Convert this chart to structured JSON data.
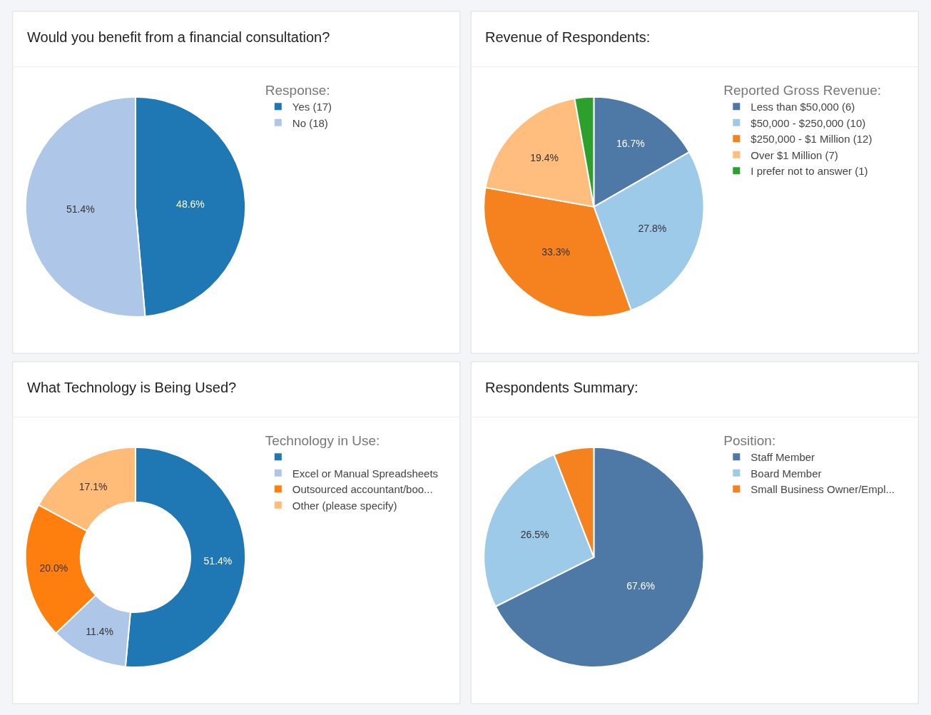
{
  "chart_data": [
    {
      "type": "pie",
      "title": "Would you benefit from a financial consultation?",
      "legend_title": "Response:",
      "legend": "top right",
      "categories": [
        "Yes (17)",
        "No (18)"
      ],
      "values": [
        48.6,
        51.4
      ],
      "colors": [
        "#1f77b4",
        "#aec7e8"
      ],
      "value_labels": [
        "48.6%",
        "51.4%"
      ]
    },
    {
      "type": "pie",
      "title": "Revenue of Respondents:",
      "legend_title": "Reported Gross Revenue:",
      "legend": "top right",
      "categories": [
        "Less than $50,000 (6)",
        "$50,000 - $250,000 (10)",
        "$250,000 - $1 Million (12)",
        "Over $1 Million (7)",
        "I prefer not to answer (1)"
      ],
      "values": [
        16.7,
        27.8,
        33.3,
        19.4,
        2.8
      ],
      "colors": [
        "#4e79a7",
        "#9ecae9",
        "#f5821f",
        "#ffbe7d",
        "#2ca02c"
      ],
      "value_labels": [
        "16.7%",
        "27.8%",
        "33.3%",
        "19.4%",
        null
      ]
    },
    {
      "type": "donut",
      "title": "What Technology is Being Used?",
      "legend_title": "Technology in Use:",
      "legend": "top right",
      "categories": [
        null,
        "Excel or Manual Spreadsheets",
        "Outsourced accountant/boo...",
        "Other (please specify)"
      ],
      "values": [
        51.4,
        11.4,
        20.0,
        17.1
      ],
      "colors": [
        "#1f77b4",
        "#aec7e8",
        "#ff7f0e",
        "#ffbb78"
      ],
      "value_labels": [
        "51.4%",
        "11.4%",
        "20.0%",
        "17.1%"
      ]
    },
    {
      "type": "pie",
      "title": "Respondents Summary:",
      "legend_title": "Position:",
      "legend": "top right",
      "categories": [
        "Staff Member",
        "Board Member",
        "Small Business Owner/Empl..."
      ],
      "values": [
        67.6,
        26.5,
        5.9
      ],
      "colors": [
        "#4e79a7",
        "#9ecae9",
        "#f5821f"
      ],
      "value_labels": [
        "67.6%",
        "26.5%",
        null
      ]
    }
  ]
}
